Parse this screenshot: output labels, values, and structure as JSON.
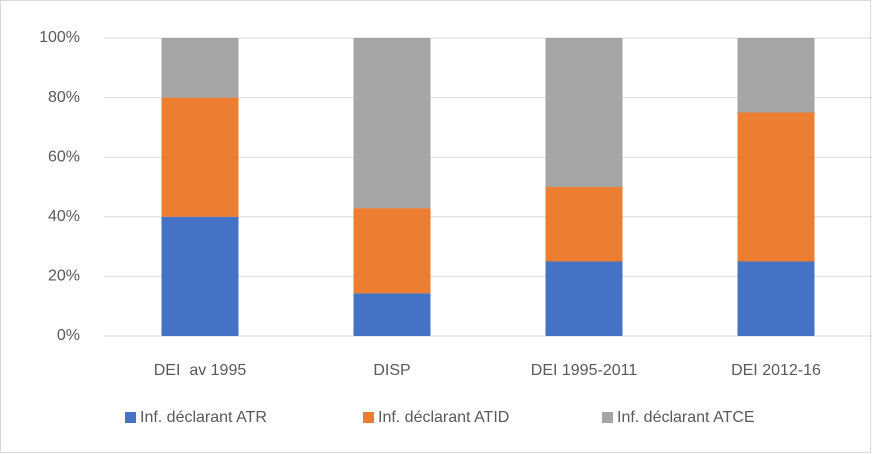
{
  "chart_data": {
    "type": "stacked_bar",
    "categories": [
      "DEI  av 1995",
      "DISP",
      "DEI 1995-2011",
      "DEI 2012-16"
    ],
    "series": [
      {
        "name": "Inf. déclarant ATR",
        "color": "#4472c4",
        "values": [
          40,
          14.3,
          25,
          25
        ]
      },
      {
        "name": "Inf. déclarant ATID",
        "color": "#ed7d31",
        "values": [
          40,
          28.6,
          25,
          50
        ]
      },
      {
        "name": "Inf. déclarant ATCE",
        "color": "#a5a5a5",
        "values": [
          20,
          57.1,
          50,
          25
        ]
      }
    ],
    "ylim": [
      0,
      100
    ],
    "yticks": [
      {
        "value": 0,
        "label": "0%"
      },
      {
        "value": 20,
        "label": "20%"
      },
      {
        "value": 40,
        "label": "40%"
      },
      {
        "value": 60,
        "label": "60%"
      },
      {
        "value": 80,
        "label": "80%"
      },
      {
        "value": 100,
        "label": "100%"
      }
    ],
    "grid": true,
    "legend": "bottom"
  }
}
